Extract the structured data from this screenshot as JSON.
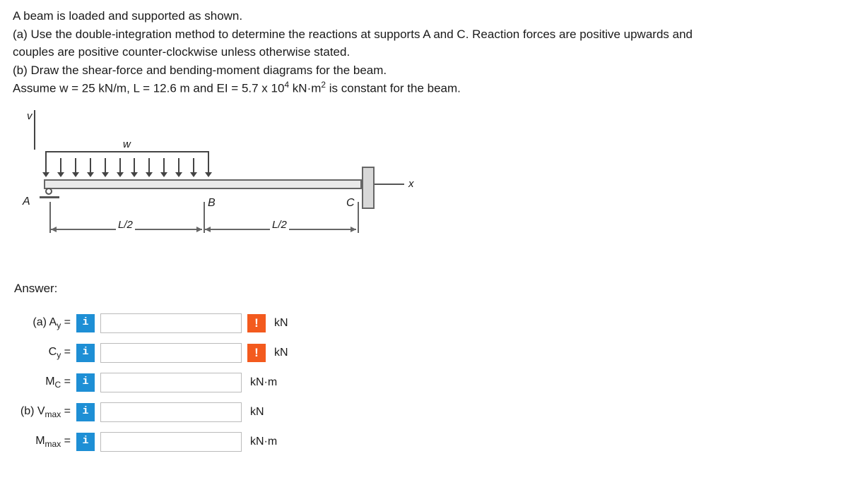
{
  "problem": {
    "line1": "A beam is loaded and supported as shown.",
    "line2": "(a) Use the double-integration method to determine the reactions at supports A and C. Reaction forces are positive upwards and",
    "line3": "couples are positive counter-clockwise unless otherwise stated.",
    "line4": "(b) Draw the shear-force and bending-moment diagrams for the beam.",
    "line5_pre": "Assume w = 25 kN/m, L = 12.6 m and EI = 5.7 x 10",
    "line5_sup": "4",
    "line5_mid": " kN·m",
    "line5_sup2": "2",
    "line5_post": " is constant for the beam."
  },
  "diagram": {
    "v_label": "v",
    "w_label": "w",
    "x_label": "x",
    "A": "A",
    "B": "B",
    "C": "C",
    "half1": "L/2",
    "half2": "L/2"
  },
  "answer_heading": "Answer:",
  "rows": [
    {
      "label_html": "(a) A<sub>y</sub> =",
      "info": "i",
      "warn": "!",
      "unit": "kN"
    },
    {
      "label_html": "C<sub>y</sub> =",
      "info": "i",
      "warn": "!",
      "unit": "kN"
    },
    {
      "label_html": "M<sub>C</sub> =",
      "info": "i",
      "warn": "",
      "unit": "kN·m"
    },
    {
      "label_html": "(b) V<sub>max</sub> =",
      "info": "i",
      "warn": "",
      "unit": "kN"
    },
    {
      "label_html": "M<sub>max</sub> =",
      "info": "i",
      "warn": "",
      "unit": "kN·m"
    }
  ],
  "colors": {
    "info_bg": "#1e8fd5",
    "warn_bg": "#f35a1e",
    "text": "#1a1a1a"
  }
}
